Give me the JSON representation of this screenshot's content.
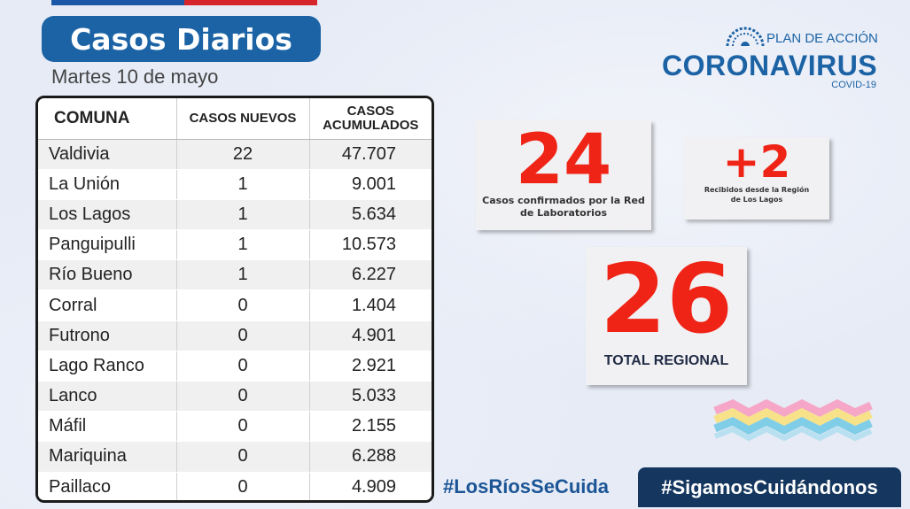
{
  "header": {
    "title": "Casos Diarios",
    "date": "Martes 10 de mayo"
  },
  "logo": {
    "plan": "PLAN DE ACCIÓN",
    "name": "CORONAVIRUS",
    "sub": "COVID-19"
  },
  "table": {
    "headers": {
      "comuna": "COMUNA",
      "nuevos": "CASOS NUEVOS",
      "acumulados_1": "CASOS",
      "acumulados_2": "ACUMULADOS"
    },
    "rows": [
      {
        "comuna": "Valdivia",
        "nuevos": "22",
        "acumulados": "47.707"
      },
      {
        "comuna": "La Unión",
        "nuevos": "1",
        "acumulados": "9.001"
      },
      {
        "comuna": "Los Lagos",
        "nuevos": "1",
        "acumulados": "5.634"
      },
      {
        "comuna": "Panguipulli",
        "nuevos": "1",
        "acumulados": "10.573"
      },
      {
        "comuna": "Río Bueno",
        "nuevos": "1",
        "acumulados": "6.227"
      },
      {
        "comuna": "Corral",
        "nuevos": "0",
        "acumulados": "1.404"
      },
      {
        "comuna": "Futrono",
        "nuevos": "0",
        "acumulados": "4.901"
      },
      {
        "comuna": "Lago Ranco",
        "nuevos": "0",
        "acumulados": "2.921"
      },
      {
        "comuna": "Lanco",
        "nuevos": "0",
        "acumulados": "5.033"
      },
      {
        "comuna": "Máfil",
        "nuevos": "0",
        "acumulados": "2.155"
      },
      {
        "comuna": "Mariquina",
        "nuevos": "0",
        "acumulados": "6.288"
      },
      {
        "comuna": "Paillaco",
        "nuevos": "0",
        "acumulados": "4.909"
      }
    ]
  },
  "cards": {
    "lab": {
      "value": "24",
      "label": "Casos confirmados por la Red de Laboratorios"
    },
    "lagos": {
      "value": "+2",
      "label": "Recibidos desde la Región de Los Lagos"
    },
    "total": {
      "value": "26",
      "label": "TOTAL REGIONAL"
    }
  },
  "footer": {
    "hashtag_1": "#LosRíosSeCuida",
    "hashtag_2": "#SigamosCuidándonos"
  },
  "colors": {
    "brand_blue": "#1c63a5",
    "accent_red": "#ef2416",
    "navy": "#15375f"
  },
  "icons": {
    "virus": "virus-icon",
    "waves": "waves-graphic"
  }
}
